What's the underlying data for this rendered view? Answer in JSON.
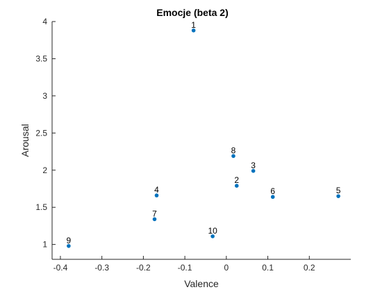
{
  "chart_data": {
    "type": "scatter",
    "title": "Emocje (beta 2)",
    "xlabel": "Valence",
    "ylabel": "Arousal",
    "xlim": [
      -0.42,
      0.3
    ],
    "ylim": [
      0.8,
      4.0
    ],
    "xticks": [
      -0.4,
      -0.3,
      -0.2,
      -0.1,
      0,
      0.1,
      0.2
    ],
    "xtick_labels": [
      "-0.4",
      "-0.3",
      "-0.2",
      "-0.1",
      "0",
      "0.1",
      "0.2"
    ],
    "yticks": [
      1,
      1.5,
      2,
      2.5,
      3,
      3.5,
      4
    ],
    "ytick_labels": [
      "1",
      "1.5",
      "2",
      "2.5",
      "3",
      "3.5",
      "4"
    ],
    "grid": false,
    "marker_color": "#0072BD",
    "points": [
      {
        "label": "1",
        "x": -0.079,
        "y": 3.88
      },
      {
        "label": "2",
        "x": 0.025,
        "y": 1.79
      },
      {
        "label": "3",
        "x": 0.065,
        "y": 1.99
      },
      {
        "label": "4",
        "x": -0.168,
        "y": 1.66
      },
      {
        "label": "5",
        "x": 0.27,
        "y": 1.65
      },
      {
        "label": "6",
        "x": 0.112,
        "y": 1.64
      },
      {
        "label": "7",
        "x": -0.173,
        "y": 1.34
      },
      {
        "label": "8",
        "x": 0.017,
        "y": 2.19
      },
      {
        "label": "9",
        "x": -0.38,
        "y": 0.98
      },
      {
        "label": "10",
        "x": -0.033,
        "y": 1.11
      }
    ]
  }
}
